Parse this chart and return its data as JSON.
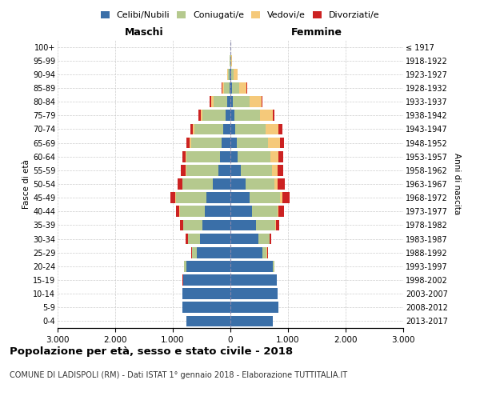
{
  "age_groups": [
    "0-4",
    "5-9",
    "10-14",
    "15-19",
    "20-24",
    "25-29",
    "30-34",
    "35-39",
    "40-44",
    "45-49",
    "50-54",
    "55-59",
    "60-64",
    "65-69",
    "70-74",
    "75-79",
    "80-84",
    "85-89",
    "90-94",
    "95-99",
    "100+"
  ],
  "birth_years": [
    "2013-2017",
    "2008-2012",
    "2003-2007",
    "1998-2002",
    "1993-1997",
    "1988-1992",
    "1983-1987",
    "1978-1982",
    "1973-1977",
    "1968-1972",
    "1963-1967",
    "1958-1962",
    "1953-1957",
    "1948-1952",
    "1943-1947",
    "1938-1942",
    "1933-1937",
    "1928-1932",
    "1923-1927",
    "1918-1922",
    "≤ 1917"
  ],
  "males": {
    "celibe": [
      760,
      840,
      830,
      820,
      770,
      590,
      530,
      480,
      450,
      420,
      310,
      210,
      180,
      150,
      130,
      90,
      55,
      20,
      10,
      3,
      2
    ],
    "coniugato": [
      0,
      0,
      0,
      5,
      30,
      80,
      210,
      340,
      430,
      530,
      520,
      560,
      580,
      530,
      490,
      390,
      230,
      90,
      30,
      4,
      1
    ],
    "vedovo": [
      0,
      0,
      0,
      0,
      2,
      2,
      2,
      2,
      5,
      5,
      5,
      10,
      20,
      30,
      30,
      40,
      50,
      30,
      10,
      2,
      0
    ],
    "divorziato": [
      0,
      0,
      0,
      2,
      5,
      10,
      30,
      50,
      60,
      80,
      80,
      80,
      60,
      55,
      50,
      30,
      20,
      10,
      2,
      0,
      0
    ]
  },
  "females": {
    "nubile": [
      740,
      830,
      820,
      800,
      730,
      550,
      480,
      440,
      380,
      340,
      260,
      180,
      130,
      110,
      90,
      70,
      45,
      22,
      12,
      5,
      2
    ],
    "coniugata": [
      0,
      0,
      0,
      5,
      30,
      80,
      200,
      340,
      440,
      520,
      500,
      540,
      560,
      540,
      520,
      440,
      290,
      130,
      50,
      8,
      2
    ],
    "vedova": [
      0,
      0,
      0,
      0,
      2,
      2,
      5,
      10,
      20,
      40,
      60,
      100,
      150,
      210,
      230,
      220,
      200,
      130,
      60,
      10,
      2
    ],
    "divorziata": [
      0,
      0,
      0,
      2,
      5,
      15,
      30,
      60,
      90,
      130,
      130,
      100,
      80,
      70,
      60,
      40,
      25,
      10,
      2,
      0,
      0
    ]
  },
  "colors": {
    "celibe": "#3a6fa8",
    "coniugato": "#b5c98e",
    "vedovo": "#f5c97a",
    "divorziato": "#cc2222"
  },
  "xlim": 3000,
  "xticklabels": [
    "3.000",
    "2.000",
    "1.000",
    "0",
    "1.000",
    "2.000",
    "3.000"
  ],
  "title": "Popolazione per età, sesso e stato civile - 2018",
  "subtitle": "COMUNE DI LADISPOLI (RM) - Dati ISTAT 1° gennaio 2018 - Elaborazione TUTTITALIA.IT",
  "ylabel_left": "Fasce di età",
  "ylabel_right": "Anni di nascita",
  "header_left": "Maschi",
  "header_right": "Femmine",
  "bg_color": "#ffffff",
  "grid_color": "#cccccc"
}
